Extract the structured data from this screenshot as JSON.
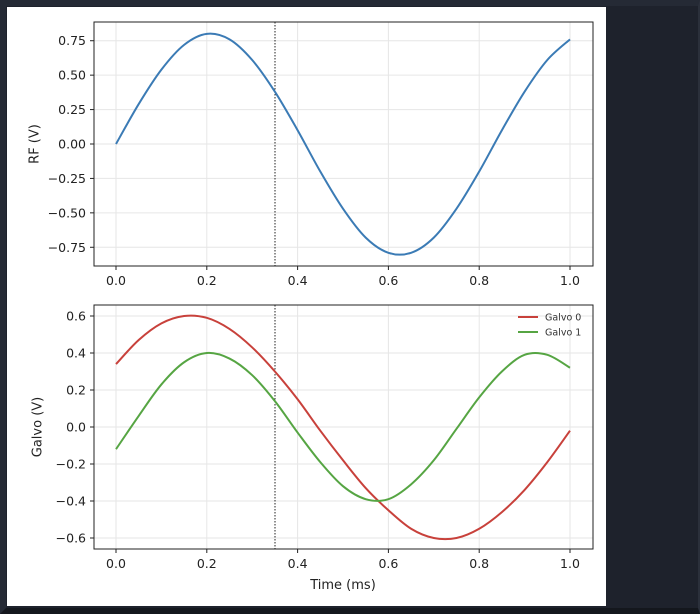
{
  "colors": {
    "background": "#1e222c",
    "panel": "#ffffff",
    "rf": "#3b7bb5",
    "galvo0": "#c8413b",
    "galvo1": "#56a543",
    "grid": "#e6e6e6",
    "marker": "#222222"
  },
  "chart_data": [
    {
      "type": "line",
      "title": "",
      "xlabel": "",
      "ylabel": "RF (V)",
      "xlim": [
        -0.05,
        1.05
      ],
      "ylim": [
        -0.88,
        0.88
      ],
      "xticks": [
        "0.0",
        "0.2",
        "0.4",
        "0.6",
        "0.8",
        "1.0"
      ],
      "yticks": [
        "0.75",
        "0.50",
        "0.25",
        "0.00",
        "−0.25",
        "−0.50",
        "−0.75"
      ],
      "grid": true,
      "marker_line_x": 0.352,
      "series": [
        {
          "name": "RF",
          "x": [
            0.0,
            0.05,
            0.1,
            0.15,
            0.2,
            0.25,
            0.3,
            0.35,
            0.4,
            0.45,
            0.5,
            0.55,
            0.6,
            0.65,
            0.7,
            0.75,
            0.8,
            0.85,
            0.9,
            0.95,
            1.0
          ],
          "values": [
            0.0,
            0.29,
            0.54,
            0.72,
            0.8,
            0.76,
            0.61,
            0.38,
            0.1,
            -0.2,
            -0.47,
            -0.68,
            -0.79,
            -0.79,
            -0.68,
            -0.47,
            -0.2,
            0.1,
            0.38,
            0.61,
            0.76
          ]
        }
      ]
    },
    {
      "type": "line",
      "title": "",
      "xlabel": "Time (ms)",
      "ylabel": "Galvo (V)",
      "xlim": [
        -0.05,
        1.05
      ],
      "ylim": [
        -0.66,
        0.66
      ],
      "xticks": [
        "0.0",
        "0.2",
        "0.4",
        "0.6",
        "0.8",
        "1.0"
      ],
      "yticks": [
        "0.6",
        "0.4",
        "0.2",
        "0.0",
        "−0.2",
        "−0.4",
        "−0.6"
      ],
      "grid": true,
      "legend": {
        "position": "upper right",
        "entries": [
          "Galvo 0",
          "Galvo 1"
        ]
      },
      "marker_line_x": 0.352,
      "series": [
        {
          "name": "Galvo 0",
          "x": [
            0.0,
            0.05,
            0.1,
            0.15,
            0.2,
            0.25,
            0.3,
            0.35,
            0.4,
            0.45,
            0.5,
            0.55,
            0.6,
            0.65,
            0.7,
            0.75,
            0.8,
            0.85,
            0.9,
            0.95,
            1.0
          ],
          "values": [
            0.34,
            0.47,
            0.56,
            0.6,
            0.59,
            0.53,
            0.43,
            0.3,
            0.15,
            -0.02,
            -0.18,
            -0.33,
            -0.45,
            -0.55,
            -0.6,
            -0.6,
            -0.55,
            -0.46,
            -0.34,
            -0.19,
            -0.02
          ]
        },
        {
          "name": "Galvo 1",
          "x": [
            0.0,
            0.05,
            0.1,
            0.15,
            0.2,
            0.25,
            0.3,
            0.35,
            0.4,
            0.45,
            0.5,
            0.55,
            0.6,
            0.65,
            0.7,
            0.75,
            0.8,
            0.85,
            0.9,
            0.95,
            1.0
          ],
          "values": [
            -0.12,
            0.06,
            0.23,
            0.35,
            0.4,
            0.37,
            0.28,
            0.14,
            -0.03,
            -0.19,
            -0.32,
            -0.39,
            -0.39,
            -0.31,
            -0.18,
            -0.01,
            0.16,
            0.3,
            0.39,
            0.39,
            0.32
          ]
        }
      ]
    }
  ],
  "plots": {
    "top": {
      "ylabel": "RF (V)",
      "xticks": [
        "0.0",
        "0.2",
        "0.4",
        "0.6",
        "0.8",
        "1.0"
      ],
      "yticks": [
        "0.75",
        "0.50",
        "0.25",
        "0.00",
        "−0.25",
        "−0.50",
        "−0.75"
      ]
    },
    "bottom": {
      "ylabel": "Galvo (V)",
      "xlabel": "Time (ms)",
      "xticks": [
        "0.0",
        "0.2",
        "0.4",
        "0.6",
        "0.8",
        "1.0"
      ],
      "yticks": [
        "0.6",
        "0.4",
        "0.2",
        "0.0",
        "−0.2",
        "−0.4",
        "−0.6"
      ],
      "legend": [
        "Galvo 0",
        "Galvo 1"
      ]
    }
  }
}
